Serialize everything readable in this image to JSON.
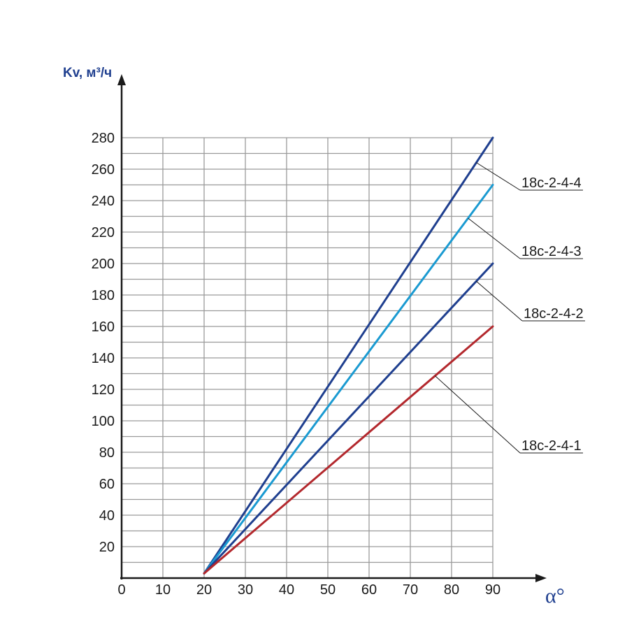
{
  "chart_data": {
    "type": "line",
    "title": "",
    "xlabel": "α°",
    "ylabel": "Kv, м³/ч",
    "xlim": [
      0,
      90
    ],
    "ylim": [
      0,
      280
    ],
    "x_ticks": [
      0,
      10,
      20,
      30,
      40,
      50,
      60,
      70,
      80,
      90
    ],
    "y_ticks": [
      20,
      40,
      60,
      80,
      100,
      120,
      140,
      160,
      180,
      200,
      220,
      240,
      260,
      280
    ],
    "grid": true,
    "series": [
      {
        "name": "18с-2-4-4",
        "color": "#1f3f8f",
        "x": [
          20,
          90
        ],
        "y": [
          3,
          280
        ]
      },
      {
        "name": "18с-2-4-3",
        "color": "#1a9ad1",
        "x": [
          20,
          90
        ],
        "y": [
          3,
          250
        ]
      },
      {
        "name": "18с-2-4-2",
        "color": "#1f3f8f",
        "x": [
          20,
          90
        ],
        "y": [
          3,
          200
        ]
      },
      {
        "name": "18с-2-4-1",
        "color": "#b3282d",
        "x": [
          20,
          90
        ],
        "y": [
          3,
          160
        ]
      }
    ]
  }
}
